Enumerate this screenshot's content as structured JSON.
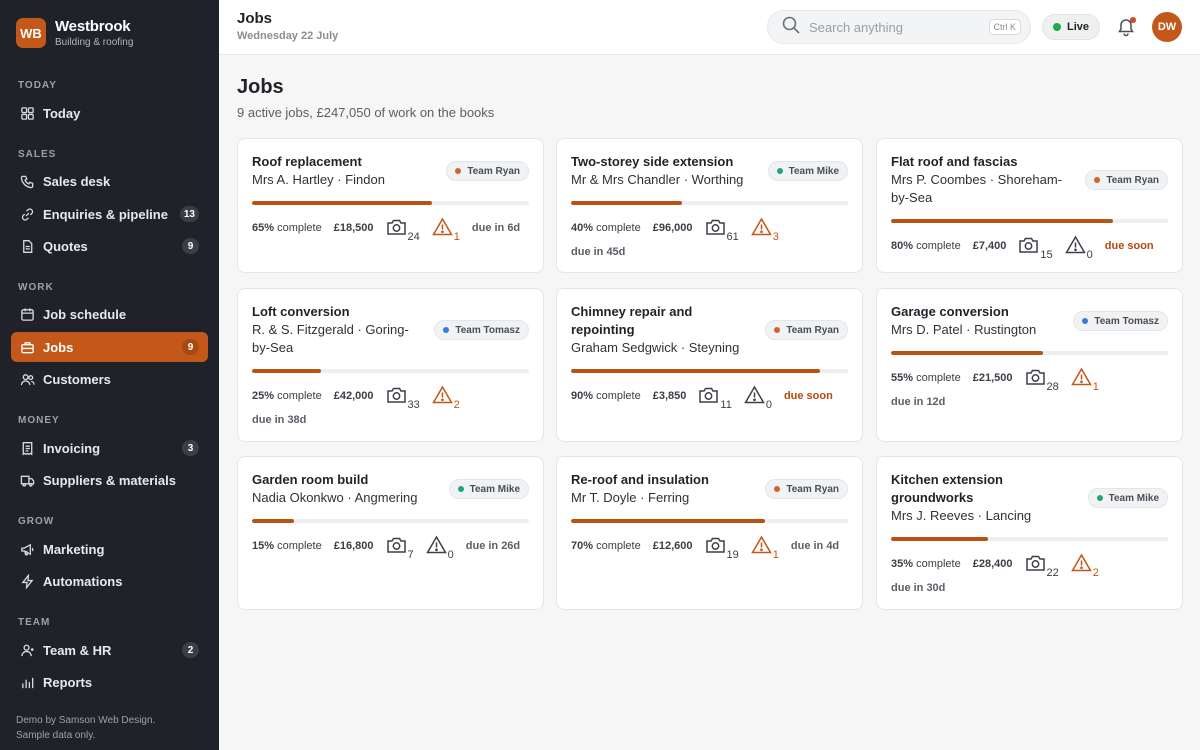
{
  "brand": {
    "initials": "WB",
    "name": "Westbrook",
    "subtitle": "Building & roofing"
  },
  "sidebar": {
    "sections": [
      {
        "label": "TODAY"
      },
      {
        "label": "SALES"
      },
      {
        "label": "WORK"
      },
      {
        "label": "MONEY"
      },
      {
        "label": "GROW"
      },
      {
        "label": "TEAM"
      }
    ],
    "items": [
      {
        "label": "Today",
        "icon": "grid-icon"
      },
      {
        "label": "Sales desk",
        "icon": "phone-icon"
      },
      {
        "label": "Enquiries & pipeline",
        "icon": "link-icon",
        "badge": "13"
      },
      {
        "label": "Quotes",
        "icon": "document-icon",
        "badge": "9"
      },
      {
        "label": "Job schedule",
        "icon": "calendar-icon"
      },
      {
        "label": "Jobs",
        "icon": "toolbox-icon",
        "badge": "9",
        "active": true
      },
      {
        "label": "Customers",
        "icon": "users-icon"
      },
      {
        "label": "Invoicing",
        "icon": "invoice-icon",
        "badge": "3"
      },
      {
        "label": "Suppliers & materials",
        "icon": "truck-icon"
      },
      {
        "label": "Marketing",
        "icon": "megaphone-icon"
      },
      {
        "label": "Automations",
        "icon": "bolt-icon"
      },
      {
        "label": "Team & HR",
        "icon": "user-icon",
        "badge": "2"
      },
      {
        "label": "Reports",
        "icon": "bar-chart-icon"
      }
    ],
    "footer": "Demo by Samson Web Design. Sample data only."
  },
  "topbar": {
    "title": "Jobs",
    "date": "Wednesday 22 July",
    "search_placeholder": "Search anything",
    "search_shortcut": "Ctrl K",
    "live_label": "Live",
    "avatar_initials": "DW"
  },
  "page": {
    "title": "Jobs",
    "subtitle": "9 active jobs, £247,050 of work on the books"
  },
  "colors": {
    "accent": "#c4581a",
    "sidebar_bg": "#1f2228",
    "progress": "#b85412",
    "team_ryan": "#d4622a",
    "team_mike": "#1fa67a",
    "team_tomasz": "#3a7bd5",
    "warning": "#c25414"
  },
  "jobs": [
    {
      "title": "Roof replacement",
      "client": "Mrs A. Hartley · Findon",
      "team": "Team Ryan",
      "team_color": "#d4622a",
      "progress": 65,
      "pct_label": "65%",
      "pct_suffix": " complete",
      "price": "£18,500",
      "photos": "24",
      "issues": "1",
      "due": "due in 6d",
      "due_soon": false
    },
    {
      "title": "Two-storey side extension",
      "client": "Mr & Mrs Chandler · Worthing",
      "team": "Team Mike",
      "team_color": "#1fa67a",
      "progress": 40,
      "pct_label": "40%",
      "pct_suffix": " complete",
      "price": "£96,000",
      "photos": "61",
      "issues": "3",
      "due": "due in 45d",
      "due_soon": false
    },
    {
      "title": "Flat roof and fascias",
      "client": "Mrs P. Coombes · Shoreham-by-Sea",
      "team": "Team Ryan",
      "team_color": "#d4622a",
      "progress": 80,
      "pct_label": "80%",
      "pct_suffix": " complete",
      "price": "£7,400",
      "photos": "15",
      "issues": "0",
      "due": "due soon",
      "due_soon": true
    },
    {
      "title": "Loft conversion",
      "client": "R. & S. Fitzgerald · Goring-by-Sea",
      "team": "Team Tomasz",
      "team_color": "#3a7bd5",
      "progress": 25,
      "pct_label": "25%",
      "pct_suffix": " complete",
      "price": "£42,000",
      "photos": "33",
      "issues": "2",
      "due": "due in 38d",
      "due_soon": false
    },
    {
      "title": "Chimney repair and repointing",
      "client": "Graham Sedgwick · Steyning",
      "team": "Team Ryan",
      "team_color": "#d4622a",
      "progress": 90,
      "pct_label": "90%",
      "pct_suffix": " complete",
      "price": "£3,850",
      "photos": "11",
      "issues": "0",
      "due": "due soon",
      "due_soon": true
    },
    {
      "title": "Garage conversion",
      "client": "Mrs D. Patel · Rustington",
      "team": "Team Tomasz",
      "team_color": "#3a7bd5",
      "progress": 55,
      "pct_label": "55%",
      "pct_suffix": " complete",
      "price": "£21,500",
      "photos": "28",
      "issues": "1",
      "due": "due in 12d",
      "due_soon": false
    },
    {
      "title": "Garden room build",
      "client": "Nadia Okonkwo · Angmering",
      "team": "Team Mike",
      "team_color": "#1fa67a",
      "progress": 15,
      "pct_label": "15%",
      "pct_suffix": " complete",
      "price": "£16,800",
      "photos": "7",
      "issues": "0",
      "due": "due in 26d",
      "due_soon": false
    },
    {
      "title": "Re-roof and insulation",
      "client": "Mr T. Doyle · Ferring",
      "team": "Team Ryan",
      "team_color": "#d4622a",
      "progress": 70,
      "pct_label": "70%",
      "pct_suffix": " complete",
      "price": "£12,600",
      "photos": "19",
      "issues": "1",
      "due": "due in 4d",
      "due_soon": false
    },
    {
      "title": "Kitchen extension groundworks",
      "client": "Mrs J. Reeves · Lancing",
      "team": "Team Mike",
      "team_color": "#1fa67a",
      "progress": 35,
      "pct_label": "35%",
      "pct_suffix": " complete",
      "price": "£28,400",
      "photos": "22",
      "issues": "2",
      "due": "due in 30d",
      "due_soon": false
    }
  ]
}
